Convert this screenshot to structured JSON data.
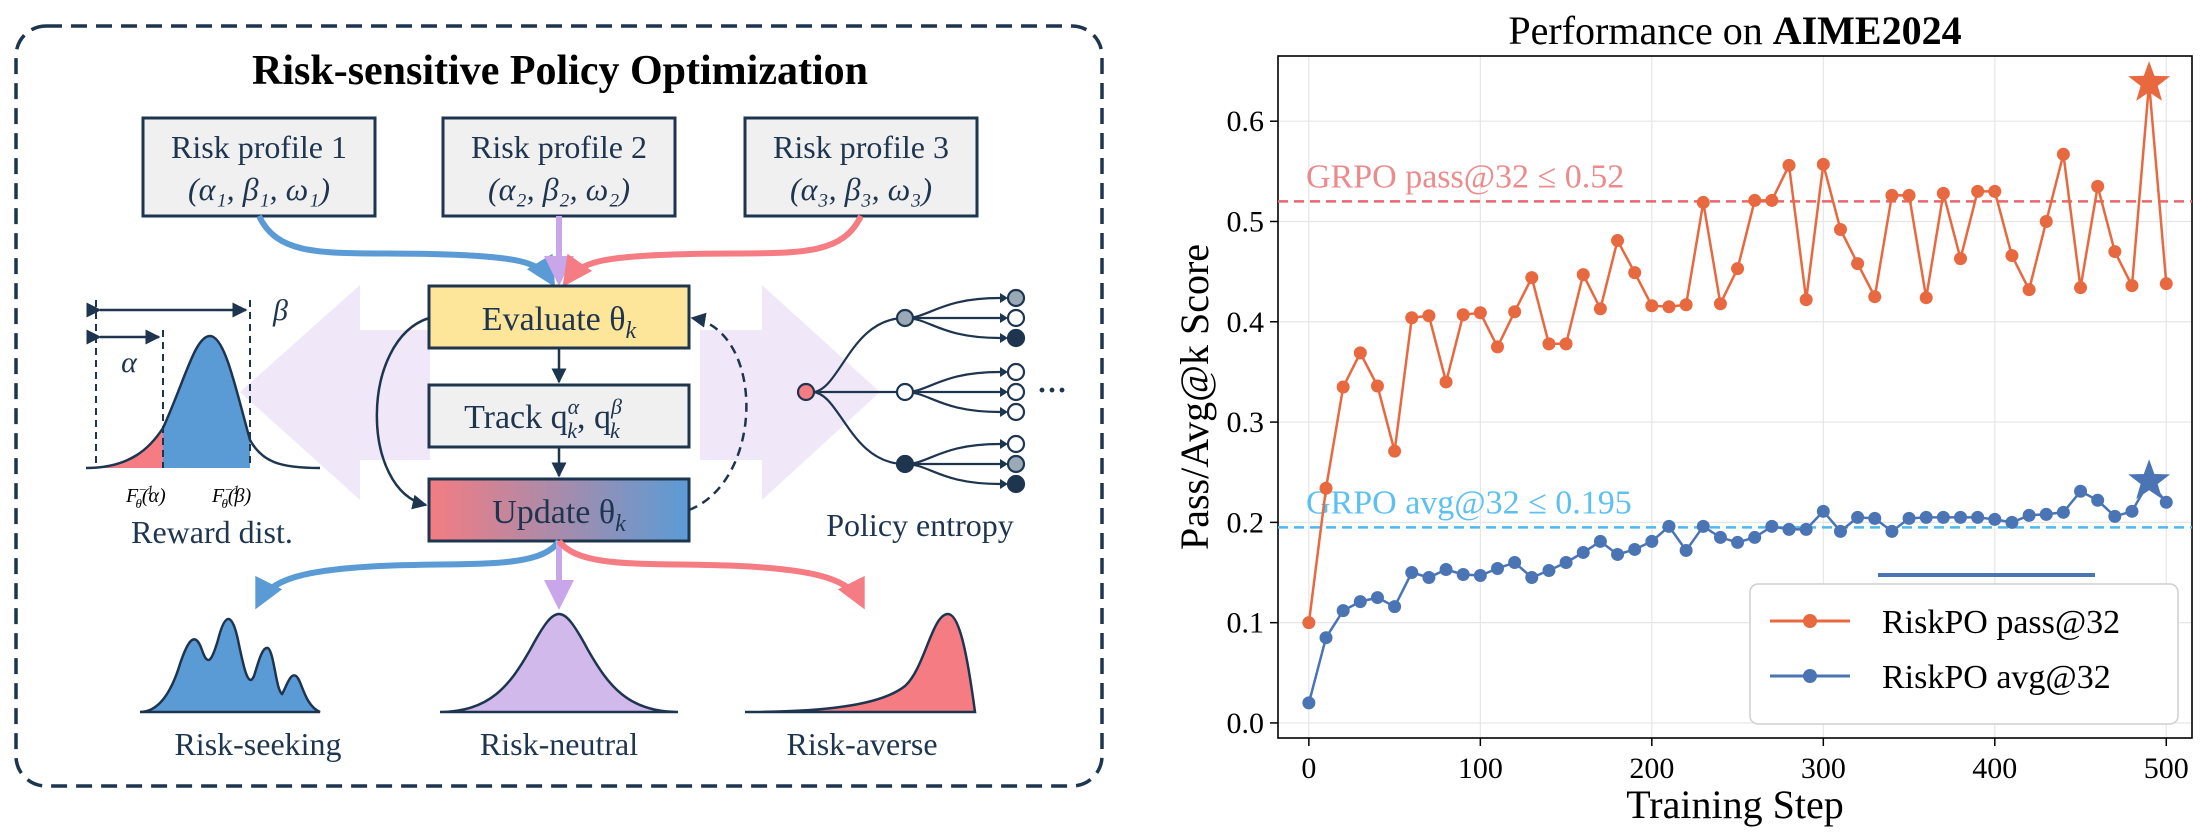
{
  "diagram": {
    "title": "Risk-sensitive Policy Optimization",
    "profiles": [
      {
        "name": "Risk profile 1",
        "params": "(α₁, β₁, ω₁)"
      },
      {
        "name": "Risk profile 2",
        "params": "(α₂, β₂, ω₂)"
      },
      {
        "name": "Risk profile 3",
        "params": "(α₃, β₃, ω₃)"
      }
    ],
    "steps": {
      "evaluate": "Evaluate θ",
      "track": "Track q",
      "update": "Update θ"
    },
    "reward": {
      "alpha": "α",
      "beta": "β",
      "f_alpha": "F",
      "f_beta": "F",
      "label": "Reward dist."
    },
    "entropy": {
      "label": "Policy entropy",
      "ellipsis": "···"
    },
    "outcomes": [
      "Risk-seeking",
      "Risk-neutral",
      "Risk-averse"
    ],
    "colors": {
      "navy": "#1e3550",
      "blue": "#5b9bd5",
      "pink": "#f47c82",
      "purple": "#c9a6ea",
      "yellow": "#fde59a"
    }
  },
  "chart_data": {
    "type": "line",
    "title_prefix": "Performance on ",
    "title_bold": "AIME2024",
    "xlabel": "Training Step",
    "ylabel": "Pass/Avg@k Score",
    "xlim": [
      -18,
      515
    ],
    "ylim": [
      -0.015,
      0.665
    ],
    "xticks": [
      0,
      100,
      200,
      300,
      400,
      500
    ],
    "yticks": [
      0.0,
      0.1,
      0.2,
      0.3,
      0.4,
      0.5,
      0.6
    ],
    "grid": true,
    "legend_position": "bottom-right",
    "series": [
      {
        "name": "RiskPO pass@32",
        "color": "#e8683f",
        "x": [
          0,
          10,
          20,
          30,
          40,
          50,
          60,
          70,
          80,
          90,
          100,
          110,
          120,
          130,
          140,
          150,
          160,
          170,
          180,
          190,
          200,
          210,
          220,
          230,
          240,
          250,
          260,
          270,
          280,
          290,
          300,
          310,
          320,
          330,
          340,
          350,
          360,
          370,
          380,
          390,
          400,
          410,
          420,
          430,
          440,
          450,
          460,
          470,
          480,
          490,
          500
        ],
        "y": [
          0.1,
          0.234,
          0.335,
          0.369,
          0.336,
          0.271,
          0.404,
          0.406,
          0.34,
          0.407,
          0.409,
          0.375,
          0.41,
          0.444,
          0.378,
          0.378,
          0.447,
          0.413,
          0.481,
          0.449,
          0.416,
          0.415,
          0.417,
          0.519,
          0.418,
          0.453,
          0.521,
          0.521,
          0.556,
          0.422,
          0.557,
          0.492,
          0.458,
          0.425,
          0.526,
          0.526,
          0.424,
          0.528,
          0.463,
          0.53,
          0.53,
          0.466,
          0.432,
          0.5,
          0.567,
          0.434,
          0.535,
          0.47,
          0.436,
          0.638,
          0.438
        ],
        "marker_star": {
          "x": 490,
          "y": 0.638
        }
      },
      {
        "name": "RiskPO avg@32",
        "color": "#4a74b4",
        "x": [
          0,
          10,
          20,
          30,
          40,
          50,
          60,
          70,
          80,
          90,
          100,
          110,
          120,
          130,
          140,
          150,
          160,
          170,
          180,
          190,
          200,
          210,
          220,
          230,
          240,
          250,
          260,
          270,
          280,
          290,
          300,
          310,
          320,
          330,
          340,
          350,
          360,
          370,
          380,
          390,
          400,
          410,
          420,
          430,
          440,
          450,
          460,
          470,
          480,
          490,
          500
        ],
        "y": [
          0.02,
          0.085,
          0.112,
          0.121,
          0.125,
          0.116,
          0.15,
          0.145,
          0.153,
          0.148,
          0.147,
          0.154,
          0.16,
          0.145,
          0.152,
          0.16,
          0.17,
          0.181,
          0.168,
          0.173,
          0.181,
          0.196,
          0.172,
          0.196,
          0.185,
          0.18,
          0.185,
          0.196,
          0.193,
          0.193,
          0.211,
          0.191,
          0.205,
          0.204,
          0.191,
          0.204,
          0.205,
          0.205,
          0.205,
          0.205,
          0.203,
          0.2,
          0.207,
          0.208,
          0.21,
          0.231,
          0.222,
          0.206,
          0.211,
          0.241,
          0.22
        ],
        "marker_star": {
          "x": 490,
          "y": 0.241
        }
      }
    ],
    "hlines": [
      {
        "y": 0.52,
        "label": "GRPO pass@32 ≤ 0.52",
        "color": "#e8686a"
      },
      {
        "y": 0.195,
        "label": "GRPO avg@32 ≤ 0.195",
        "color": "#4fb9ee"
      }
    ]
  }
}
